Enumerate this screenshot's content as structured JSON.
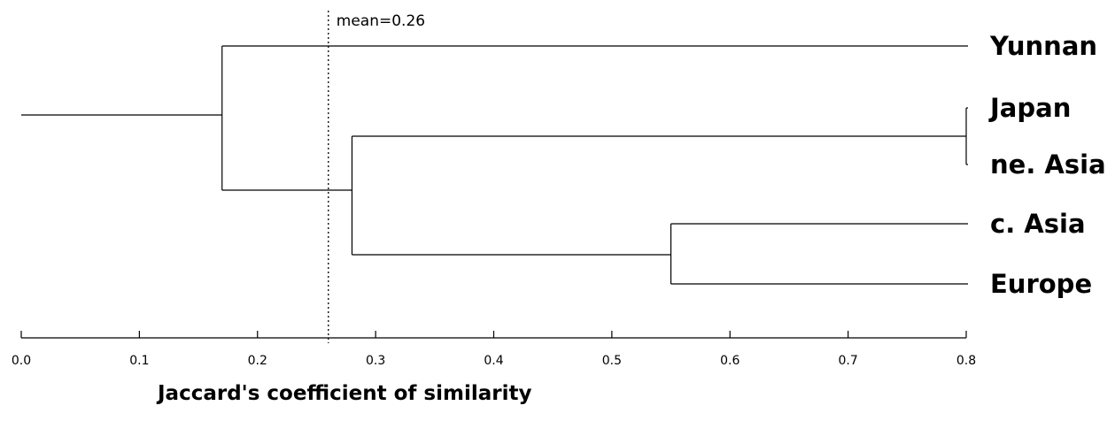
{
  "chart_data": {
    "type": "dendrogram",
    "xlabel": "Jaccard's coefficient of similarity",
    "xlim": [
      0,
      0.8
    ],
    "ticks": [
      "0.0",
      "0.1",
      "0.2",
      "0.3",
      "0.4",
      "0.5",
      "0.6",
      "0.7",
      "0.8"
    ],
    "tick_values": [
      0,
      0.1,
      0.2,
      0.3,
      0.4,
      0.5,
      0.6,
      0.7,
      0.8
    ],
    "leaves": [
      "Yunnan",
      "Japan",
      "ne. Asia",
      "c. Asia",
      "Europe"
    ],
    "merges": [
      {
        "members": [
          "Japan",
          "ne. Asia"
        ],
        "similarity": 0.8
      },
      {
        "members": [
          "c. Asia",
          "Europe"
        ],
        "similarity": 0.55
      },
      {
        "members": [
          "Japan",
          "ne. Asia",
          "c. Asia",
          "Europe"
        ],
        "similarity": 0.28
      },
      {
        "members": [
          "Yunnan",
          "Japan",
          "ne. Asia",
          "c. Asia",
          "Europe"
        ],
        "similarity": 0.17
      }
    ],
    "reference_line": {
      "value": 0.26,
      "label": "mean=0.26",
      "style": "dotted"
    },
    "line_color": "#000000"
  }
}
